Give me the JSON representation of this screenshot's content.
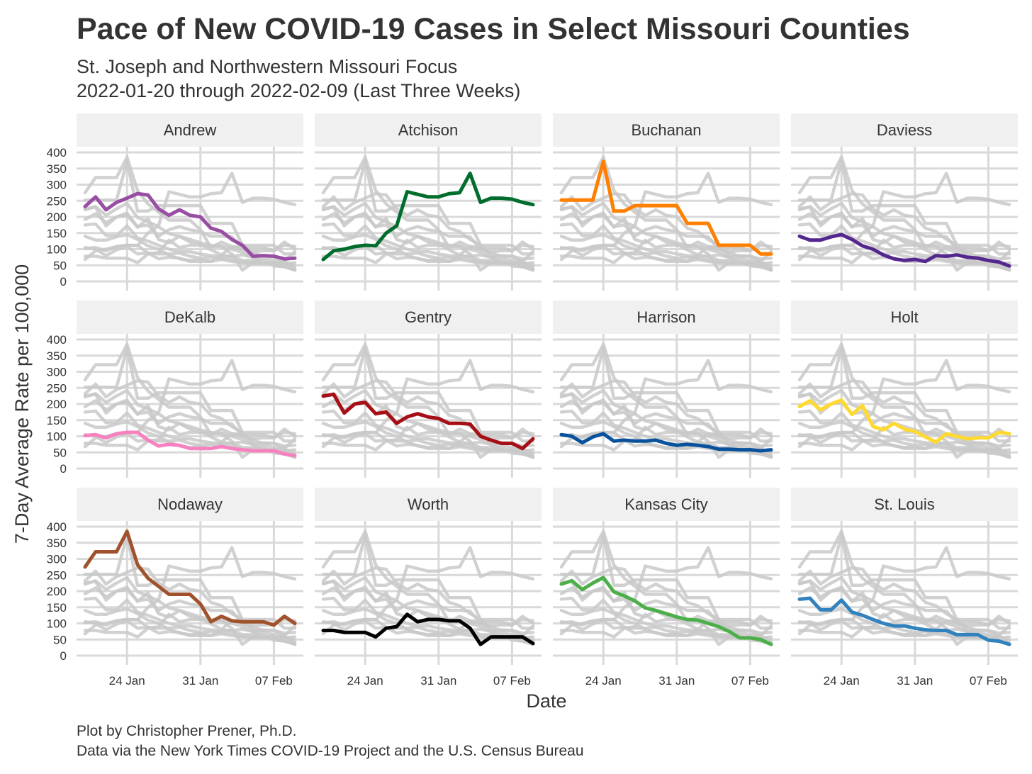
{
  "chart_data": {
    "type": "line",
    "title": "Pace of New COVID-19 Cases in Select Missouri Counties",
    "subtitle": [
      "St. Joseph and Northwestern Missouri Focus",
      "2022-01-20 through 2022-02-09 (Last Three Weeks)"
    ],
    "xlabel": "Date",
    "ylabel": "7-Day Average Rate per 100,000",
    "caption": [
      "Plot by Christopher Prener, Ph.D.",
      "Data via the New York Times COVID-19 Project and the U.S. Census Bureau"
    ],
    "x": [
      "2022-01-20",
      "2022-01-21",
      "2022-01-22",
      "2022-01-23",
      "2022-01-24",
      "2022-01-25",
      "2022-01-26",
      "2022-01-27",
      "2022-01-28",
      "2022-01-29",
      "2022-01-30",
      "2022-01-31",
      "2022-02-01",
      "2022-02-02",
      "2022-02-03",
      "2022-02-04",
      "2022-02-05",
      "2022-02-06",
      "2022-02-07",
      "2022-02-08",
      "2022-02-09"
    ],
    "x_ticks": [
      {
        "value": "2022-01-24",
        "label": "24 Jan"
      },
      {
        "value": "2022-01-31",
        "label": "31 Jan"
      },
      {
        "value": "2022-02-07",
        "label": "07 Feb"
      }
    ],
    "y_ticks": [
      0,
      50,
      100,
      150,
      200,
      250,
      300,
      350,
      400
    ],
    "ylim": [
      0,
      400
    ],
    "facet_layout": {
      "columns": 4,
      "rows": 3
    },
    "background_series_color": "#c8c8c8",
    "series": [
      {
        "name": "Andrew",
        "color": "#984ea3",
        "values": [
          232,
          262,
          222,
          245,
          258,
          272,
          268,
          225,
          205,
          222,
          205,
          200,
          165,
          155,
          130,
          112,
          78,
          80,
          78,
          70,
          72
        ]
      },
      {
        "name": "Atchison",
        "color": "#006d2c",
        "values": [
          68,
          95,
          100,
          108,
          112,
          110,
          150,
          172,
          278,
          270,
          262,
          262,
          272,
          275,
          335,
          245,
          258,
          258,
          255,
          245,
          238
        ]
      },
      {
        "name": "Buchanan",
        "color": "#ff7f00",
        "values": [
          252,
          252,
          252,
          252,
          372,
          218,
          218,
          235,
          235,
          235,
          235,
          235,
          180,
          180,
          180,
          112,
          112,
          112,
          112,
          85,
          85
        ]
      },
      {
        "name": "Daviess",
        "color": "#54278f",
        "values": [
          140,
          128,
          128,
          138,
          145,
          130,
          110,
          100,
          82,
          70,
          65,
          68,
          62,
          80,
          78,
          82,
          75,
          72,
          65,
          60,
          48
        ]
      },
      {
        "name": "DeKalb",
        "color": "#f781bf",
        "values": [
          102,
          105,
          95,
          108,
          112,
          112,
          88,
          70,
          75,
          72,
          62,
          62,
          62,
          68,
          62,
          58,
          55,
          55,
          55,
          45,
          40
        ]
      },
      {
        "name": "Gentry",
        "color": "#a50f15",
        "values": [
          225,
          230,
          172,
          200,
          205,
          170,
          175,
          140,
          160,
          170,
          160,
          155,
          140,
          140,
          138,
          100,
          88,
          78,
          78,
          62,
          92
        ]
      },
      {
        "name": "Harrison",
        "color": "#08519c",
        "values": [
          105,
          100,
          80,
          98,
          108,
          85,
          88,
          85,
          85,
          88,
          78,
          72,
          75,
          72,
          68,
          60,
          60,
          58,
          58,
          55,
          58
        ]
      },
      {
        "name": "Holt",
        "color": "#ffd92f",
        "values": [
          192,
          210,
          182,
          200,
          212,
          168,
          195,
          130,
          120,
          140,
          122,
          115,
          98,
          82,
          108,
          100,
          92,
          95,
          95,
          112,
          108
        ]
      },
      {
        "name": "Nodaway",
        "color": "#a0522d",
        "values": [
          275,
          322,
          322,
          322,
          385,
          282,
          240,
          215,
          190,
          190,
          190,
          160,
          105,
          122,
          108,
          105,
          105,
          105,
          95,
          122,
          100
        ]
      },
      {
        "name": "Worth",
        "color": "#000000",
        "values": [
          78,
          78,
          72,
          72,
          72,
          58,
          85,
          90,
          128,
          105,
          112,
          112,
          108,
          108,
          85,
          35,
          58,
          58,
          58,
          58,
          38
        ]
      },
      {
        "name": "Kansas City",
        "color": "#4daf4a",
        "values": [
          222,
          232,
          205,
          225,
          242,
          198,
          185,
          170,
          148,
          140,
          130,
          120,
          112,
          110,
          100,
          90,
          75,
          55,
          55,
          50,
          35
        ]
      },
      {
        "name": "St. Louis",
        "color": "#3182bd",
        "values": [
          175,
          178,
          142,
          142,
          172,
          135,
          125,
          112,
          100,
          92,
          92,
          85,
          80,
          78,
          78,
          65,
          65,
          65,
          48,
          45,
          35
        ]
      }
    ]
  }
}
